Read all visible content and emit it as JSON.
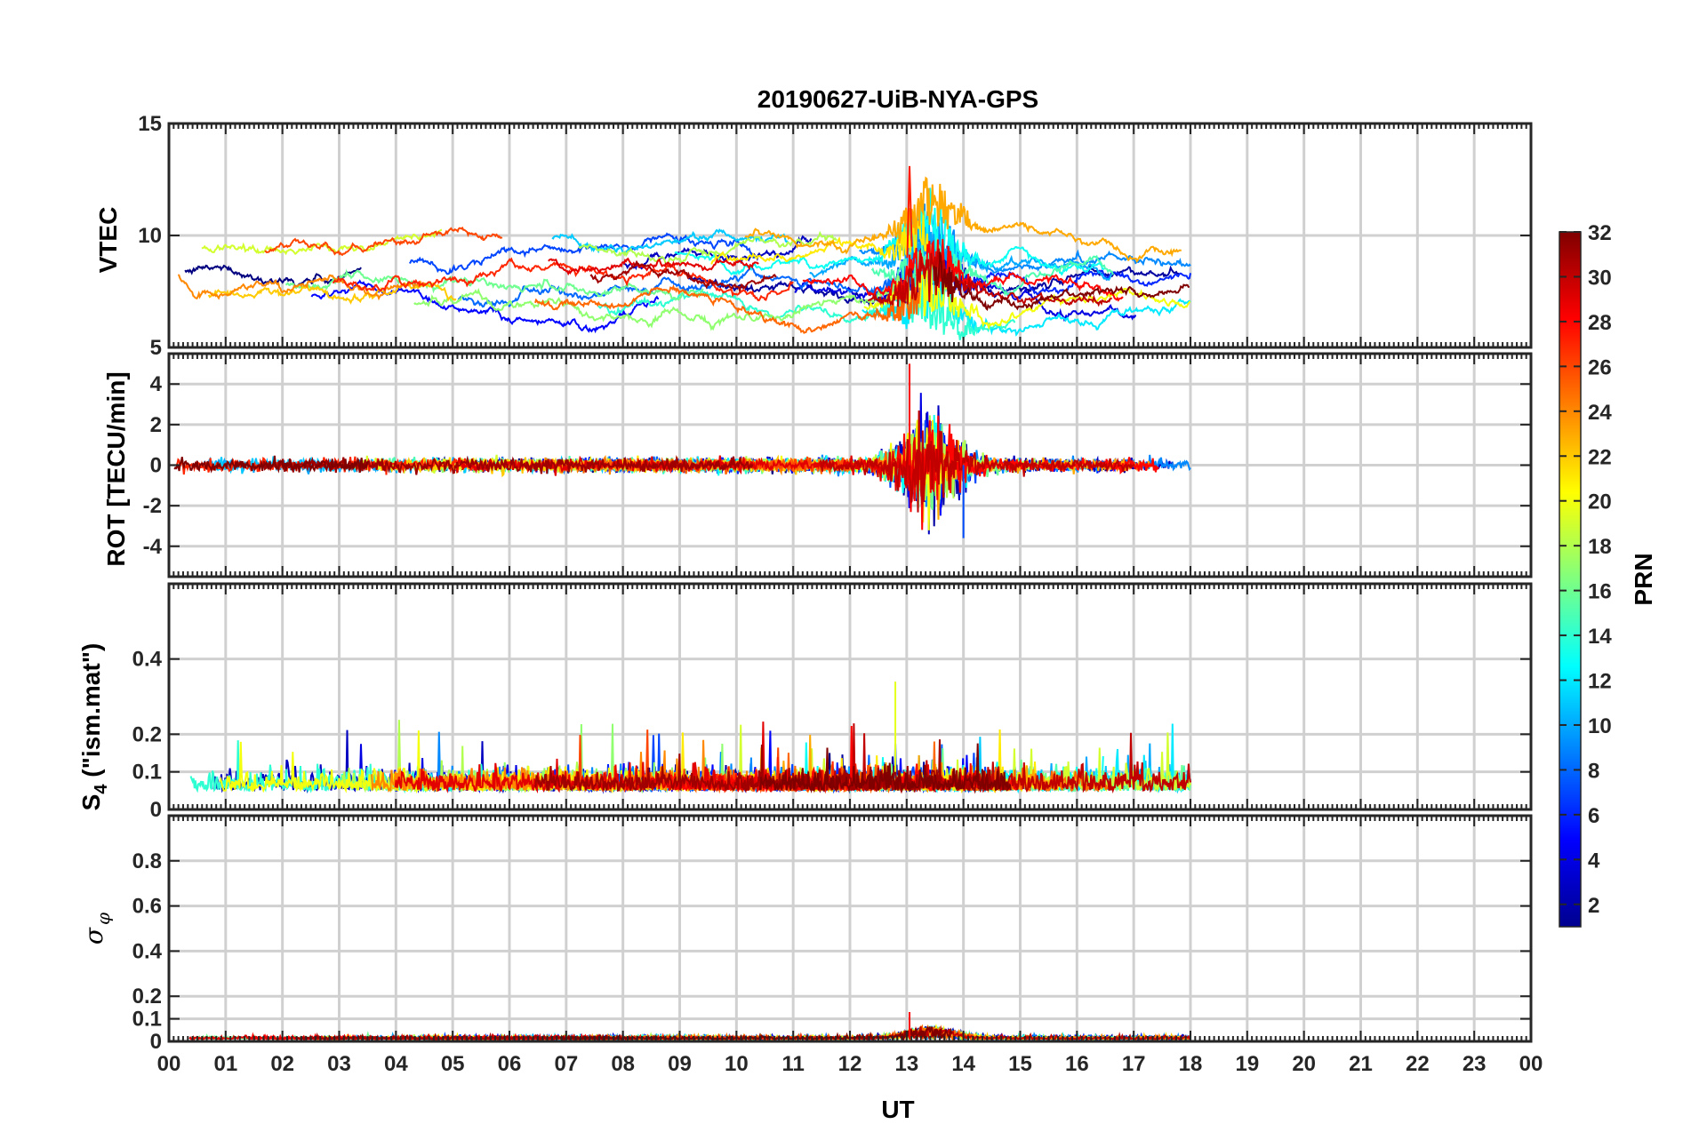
{
  "figure": {
    "title": "20190627-UiB-NYA-GPS",
    "xlabel": "UT",
    "x_ticks": [
      "00",
      "01",
      "02",
      "03",
      "04",
      "05",
      "06",
      "07",
      "08",
      "09",
      "10",
      "11",
      "12",
      "13",
      "14",
      "15",
      "16",
      "17",
      "18",
      "19",
      "20",
      "21",
      "22",
      "23",
      "00"
    ],
    "colorbar": {
      "label": "PRN",
      "range": [
        1,
        32
      ],
      "ticks": [
        "2",
        "4",
        "6",
        "8",
        "10",
        "12",
        "14",
        "16",
        "18",
        "20",
        "22",
        "24",
        "26",
        "28",
        "30",
        "32"
      ],
      "colormap": "jet"
    }
  },
  "chart_data": [
    {
      "type": "line",
      "panel": "VTEC",
      "ylabel": "VTEC",
      "xlim": [
        0,
        24
      ],
      "ylim": [
        5,
        15
      ],
      "yticks": [
        "5",
        "10",
        "15"
      ],
      "grid": true,
      "data_until_hour": 18,
      "series_summary": "32 PRN tracks; values mostly 6-11 TECU, peak about 13 TECU near 13 UT",
      "peak": {
        "x": 13.05,
        "y": 13.1
      }
    },
    {
      "type": "line",
      "panel": "ROT",
      "ylabel": "ROT [TECU/min]",
      "xlim": [
        0,
        24
      ],
      "ylim": [
        -5.5,
        5.5
      ],
      "yticks": [
        "-4",
        "-2",
        "0",
        "2",
        "4"
      ],
      "grid": true,
      "data_until_hour": 18,
      "series_summary": "values near 0 TECU/min with strong fluctuations between 12.5 and 14.5 UT",
      "extremes": {
        "max": 5.0,
        "min": -3.6
      }
    },
    {
      "type": "line",
      "panel": "S4",
      "ylabel_main": "S",
      "ylabel_sub": "4",
      "ylabel_rest": " (\"ism.mat\")",
      "xlim": [
        0,
        24
      ],
      "ylim": [
        0,
        0.6
      ],
      "yticks": [
        "0",
        "0.1",
        "0.2",
        "0.4"
      ],
      "grid": true,
      "data_until_hour": 18,
      "series_summary": "background 0.03-0.12 with spikes up to about 0.34",
      "extremes": {
        "max": 0.34
      }
    },
    {
      "type": "line",
      "panel": "sigma_phi",
      "ylabel_main": "σ",
      "ylabel_sub": "φ",
      "xlim": [
        0,
        24
      ],
      "ylim": [
        0,
        1
      ],
      "yticks": [
        "0",
        "0.1",
        "0.2",
        "0.4",
        "0.6",
        "0.8"
      ],
      "grid": true,
      "data_until_hour": 18,
      "series_summary": "near zero (about 0.01-0.04) with peak about 0.13 near 13 UT",
      "extremes": {
        "max": 0.13
      }
    }
  ]
}
